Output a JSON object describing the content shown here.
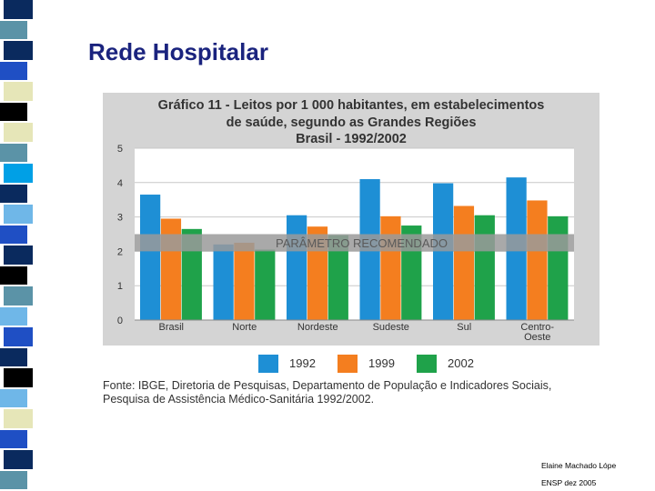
{
  "slide": {
    "title": "Rede Hospitalar",
    "author": "Elaine Machado Lópe",
    "event": "ENSP dez 2005",
    "strip_colors": [
      "#0a2a5e",
      "#5b93a7",
      "#0a2a5e",
      "#1f4fc4",
      "#e6e6b8",
      "#000000",
      "#e6e6b8",
      "#5b93a7",
      "#00a0e6",
      "#0a2a5e",
      "#6fb7e8",
      "#1f4fc4",
      "#0a2a5e",
      "#000000",
      "#5b93a7",
      "#6fb7e8",
      "#1f4fc4",
      "#0a2a5e",
      "#000000",
      "#6fb7e8",
      "#e6e6b8",
      "#1f4fc4",
      "#0a2a5e",
      "#5b93a7"
    ]
  },
  "chart_data": {
    "type": "bar",
    "title_lines": [
      "Gráfico 11 - Leitos por 1 000 habitantes, em estabelecimentos",
      "de saúde, segundo as Grandes Regiões",
      "Brasil - 1992/2002"
    ],
    "categories": [
      [
        "Brasil"
      ],
      [
        "Norte"
      ],
      [
        "Nordeste"
      ],
      [
        "Sudeste"
      ],
      [
        "Sul"
      ],
      [
        "Centro-",
        "Oeste"
      ]
    ],
    "series": [
      {
        "name": "1992",
        "color": "#1e8fd5",
        "values": [
          3.65,
          2.2,
          3.05,
          4.1,
          3.98,
          4.15
        ]
      },
      {
        "name": "1999",
        "color": "#f47e1f",
        "values": [
          2.95,
          2.25,
          2.72,
          3.02,
          3.32,
          3.48
        ]
      },
      {
        "name": "2002",
        "color": "#1fa24a",
        "values": [
          2.65,
          2.05,
          2.47,
          2.75,
          3.05,
          3.02
        ]
      }
    ],
    "yticks": [
      0,
      1,
      2,
      3,
      4,
      5
    ],
    "ylim": [
      0,
      5
    ],
    "grid": true,
    "reference": {
      "label": "PARÂMETRO RECOMENDADO",
      "from": 2.0,
      "to": 2.5,
      "color": "#9a9a9a"
    },
    "source_lines": [
      "Fonte: IBGE, Diretoria de Pesquisas, Departamento de População e Indicadores Sociais,",
      "Pesquisa de Assistência Médico-Sanitária 1992/2002."
    ]
  }
}
